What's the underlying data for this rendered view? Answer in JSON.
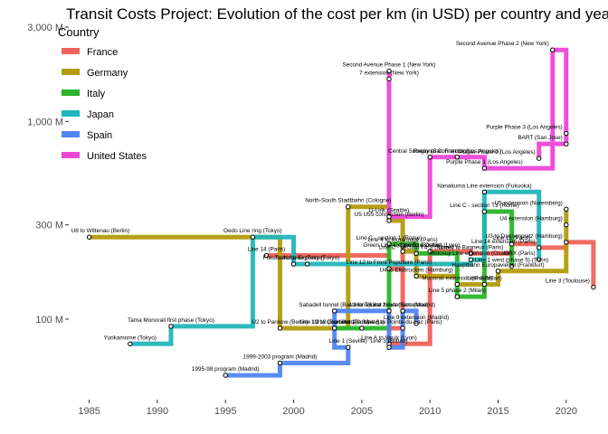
{
  "chart_data": {
    "type": "line",
    "title": "Transit Costs Project: Evolution of the cost per km (in USD) per country and year",
    "xlabel": "",
    "ylabel": "",
    "x_scale": "linear",
    "y_scale": "log",
    "xlim": [
      1983.5,
      2022.8
    ],
    "ylim": [
      40,
      3000
    ],
    "x_ticks": [
      1985,
      1990,
      1995,
      2000,
      2005,
      2010,
      2015,
      2020
    ],
    "y_ticks": [
      {
        "value": 100,
        "label": "100 M"
      },
      {
        "value": 300,
        "label": "300 M"
      },
      {
        "value": 1000,
        "label": "1,000 M"
      },
      {
        "value": 3000,
        "label": "3,000 M"
      }
    ],
    "grid": false,
    "legend": {
      "title": "Country",
      "position": "top-left"
    },
    "series": [
      {
        "name": "France",
        "color": "#f0625a",
        "points": [
          {
            "x": 1998,
            "y": 210,
            "label": "Line 14 (Paris)"
          },
          {
            "x": 2007,
            "y": 180,
            "label": "Line 12 to Front Populaire (Paris)"
          },
          {
            "x": 2008,
            "y": 235,
            "label": "Line 4 to Montrouge (Paris)"
          },
          {
            "x": 2008,
            "y": 90,
            "label": "Line 8 to Pointe-du-Lac (Paris)"
          },
          {
            "x": 2007,
            "y": 75,
            "label": "Line A to Vaulx (Lyon)"
          },
          {
            "x": 2010,
            "y": 220,
            "label": "Line B to Oullins (Lyon)"
          },
          {
            "x": 2013,
            "y": 215,
            "label": "Line 4 to Bagneux (Paris)"
          },
          {
            "x": 2016,
            "y": 240,
            "label": "Line 11 (Paris)"
          },
          {
            "x": 2018,
            "y": 230,
            "label": "Line 14 extension (Paris)"
          },
          {
            "x": 2020,
            "y": 245,
            "label": "U3 to Dannenplatz (Hamburg)"
          },
          {
            "x": 2022,
            "y": 145,
            "label": "Line 3 (Toulouse)"
          }
        ]
      },
      {
        "name": "Germany",
        "color": "#b39b0d",
        "points": [
          {
            "x": 1985,
            "y": 260,
            "label": "U8 to Wittenau (Berlin)"
          },
          {
            "x": 1999,
            "y": 90,
            "label": "U2 to Pankow (Berlin)"
          },
          {
            "x": 2003,
            "y": 90,
            "label": "Line 13 to Courtilles (Paris)"
          },
          {
            "x": 2004,
            "y": 370,
            "label": "North-South Stadtbahn (Cologne)"
          },
          {
            "x": 2007,
            "y": 315,
            "label": "U5 U55 connection (Berlin)"
          },
          {
            "x": 2008,
            "y": 220,
            "label": "Green Line Extension (Boston)"
          },
          {
            "x": 2009,
            "y": 165,
            "label": "U4 to Elbbrücken (Hamburg)"
          },
          {
            "x": 2012,
            "y": 150,
            "label": "Monorail extension (Osaka)"
          },
          {
            "x": 2015,
            "y": 175,
            "label": "Hauptbahn Europaviertel (Frankfurt)"
          },
          {
            "x": 2020,
            "y": 360,
            "label": "U5 extension (Nuremberg)"
          },
          {
            "x": 2020,
            "y": 300,
            "label": "U4 extension (Hamburg)"
          }
        ]
      },
      {
        "name": "Italy",
        "color": "#2ab52a",
        "points": [
          {
            "x": 2003,
            "y": 90,
            "label": "L9/10 (Barcelona)"
          },
          {
            "x": 2005,
            "y": 90,
            "label": "Line 1-2 (Malaga)"
          },
          {
            "x": 2007,
            "y": 240,
            "label": "Line C - section 1 (Rome)"
          },
          {
            "x": 2009,
            "y": 215,
            "label": "Line C - section T4-S (Rome)"
          },
          {
            "x": 2012,
            "y": 130,
            "label": "Line 5 phase 2 (Milan)"
          },
          {
            "x": 2014,
            "y": 150,
            "label": "Line 4 (Milan)"
          },
          {
            "x": 2014,
            "y": 350,
            "label": "Line C - section T3 (Rome)"
          },
          {
            "x": 2016,
            "y": 185,
            "label": "Line 1 west (phase 5) (Turin)"
          }
        ]
      },
      {
        "name": "Japan",
        "color": "#21b6b9",
        "points": [
          {
            "x": 1988,
            "y": 75,
            "label": "Yurikamome (Tokyo)"
          },
          {
            "x": 1991,
            "y": 92,
            "label": "Tama Monorail first phase (Tokyo)"
          },
          {
            "x": 1997,
            "y": 260,
            "label": "Oedo Line ring (Tokyo)"
          },
          {
            "x": 2000,
            "y": 190,
            "label": "Fukutoshin Line (Tokyo)"
          },
          {
            "x": 2001,
            "y": 190,
            "label": "Tsukuba Express (Tokyo)"
          },
          {
            "x": 2013,
            "y": 200,
            "label": "Midosuji Line extension (Osaka)"
          },
          {
            "x": 2014,
            "y": 440,
            "label": "Nanakuma Line extension (Fukuoka)"
          },
          {
            "x": 2018,
            "y": 200,
            "label": "GRX (Paris)"
          }
        ]
      },
      {
        "name": "Spain",
        "color": "#4f86f0",
        "points": [
          {
            "x": 1995,
            "y": 52,
            "label": "1995-98 program (Madrid)"
          },
          {
            "x": 1999,
            "y": 60,
            "label": "1999-2003 program (Madrid)"
          },
          {
            "x": 2004,
            "y": 72,
            "label": "Line 1 (Seville)"
          },
          {
            "x": 2003,
            "y": 110,
            "label": "Sabadell tunnel (Barcelona)"
          },
          {
            "x": 2007,
            "y": 110,
            "label": "L9 to Trinitat Nova (Barcelona)"
          },
          {
            "x": 2007,
            "y": 72,
            "label": "Line 3 (Bilbao)"
          },
          {
            "x": 2008,
            "y": 110,
            "label": "Line 2 extension (Madrid)"
          },
          {
            "x": 2009,
            "y": 95,
            "label": "Line 9 extension (Madrid)"
          }
        ]
      },
      {
        "name": "United States",
        "color": "#ed46d8",
        "points": [
          {
            "x": 2007,
            "y": 1800,
            "label": "Second Avenue Phase 1 (New York)"
          },
          {
            "x": 2007,
            "y": 1640,
            "label": "7 extension (New York)"
          },
          {
            "x": 2007,
            "y": 330,
            "label": "U-Link (Seattle)"
          },
          {
            "x": 2010,
            "y": 660,
            "label": "Central Subway (San Francisco)"
          },
          {
            "x": 2012,
            "y": 660,
            "label": "Regional Connector (Los Angeles)"
          },
          {
            "x": 2014,
            "y": 580,
            "label": "Purple Phase 1 (Los Angeles)"
          },
          {
            "x": 2019,
            "y": 2300,
            "label": "Second Avenue Phase 2 (New York)"
          },
          {
            "x": 2020,
            "y": 870,
            "label": "Purple Phase 3 (Los Angeles)"
          },
          {
            "x": 2020,
            "y": 770,
            "label": "BART (San Jose)"
          },
          {
            "x": 2018,
            "y": 650,
            "label": "Purple Phase 2 (Los Angeles)"
          }
        ]
      }
    ]
  }
}
